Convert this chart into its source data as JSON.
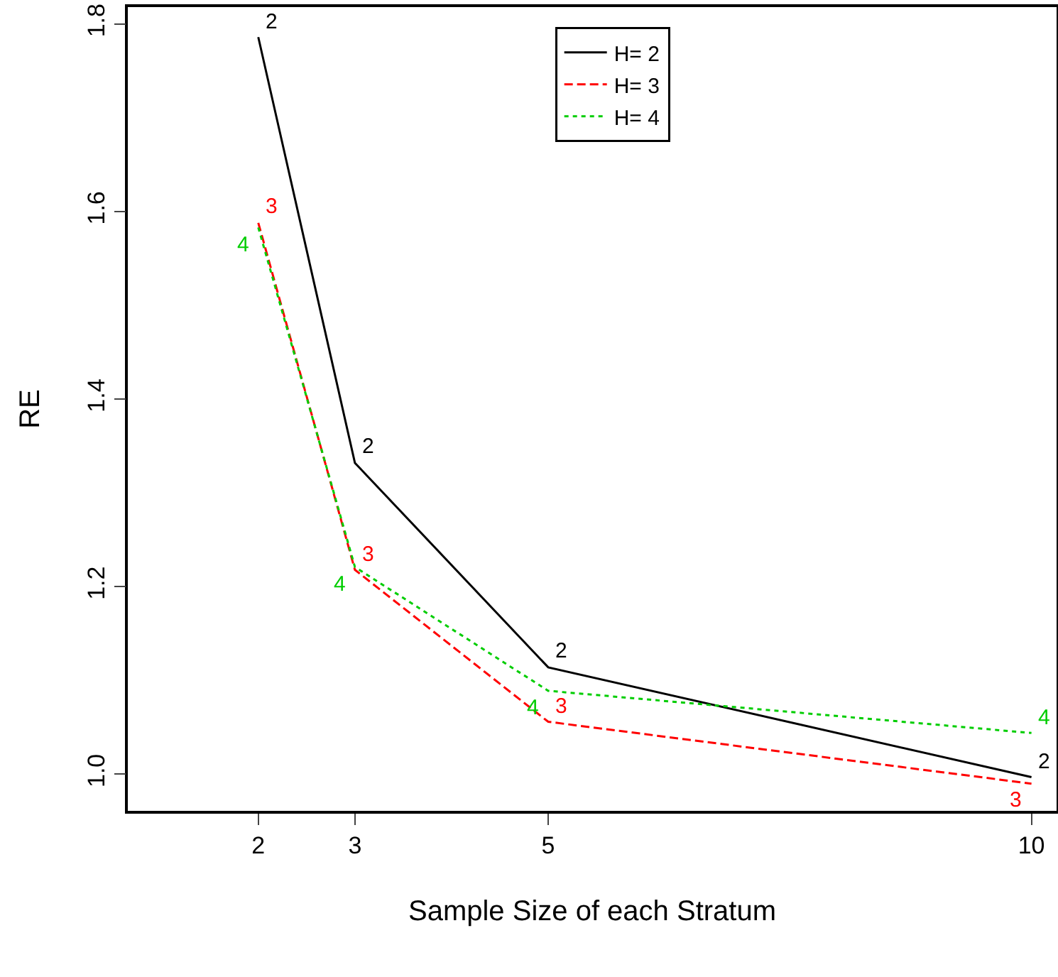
{
  "chart_data": {
    "type": "line",
    "xlabel": "Sample Size of each Stratum",
    "ylabel": "RE",
    "xlim": [
      0.65,
      10.26
    ],
    "xticks": [
      2,
      3,
      5,
      10
    ],
    "ylim": [
      0.961,
      1.818
    ],
    "yticks": [
      {
        "value": 1.0,
        "label": "1.0"
      },
      {
        "value": 1.2,
        "label": "1.2"
      },
      {
        "value": 1.4,
        "label": "1.4"
      },
      {
        "value": 1.6,
        "label": "1.6"
      },
      {
        "value": 1.8,
        "label": "1.8"
      }
    ],
    "x": [
      2,
      3,
      5,
      10
    ],
    "grid": false,
    "legend": "top right",
    "marker": "none",
    "series": [
      {
        "name": "H= 2",
        "color": "#000000",
        "line_style": "solid",
        "values": [
          1.786,
          1.332,
          1.114,
          0.997
        ]
      },
      {
        "name": "H= 3",
        "color": "#ff0000",
        "line_style": "dashed",
        "values": [
          1.588,
          1.218,
          1.056,
          0.99
        ]
      },
      {
        "name": "H= 4",
        "color": "#00cd00",
        "line_style": "dotted",
        "values": [
          1.583,
          1.221,
          1.089,
          1.044
        ]
      }
    ],
    "annotations": [
      {
        "text": "2",
        "x": 2,
        "y": 1.786
      },
      {
        "text": "2",
        "x": 3,
        "y": 1.332
      },
      {
        "text": "2",
        "x": 5,
        "y": 1.114
      },
      {
        "text": "2",
        "x": 10,
        "y": 0.997
      },
      {
        "text": "3",
        "x": 2,
        "y": 1.588
      },
      {
        "text": "3",
        "x": 3,
        "y": 1.218
      },
      {
        "text": "3",
        "x": 5,
        "y": 1.056
      },
      {
        "text": "3",
        "x": 10,
        "y": 0.99
      },
      {
        "text": "4",
        "x": 2,
        "y": 1.583
      },
      {
        "text": "4",
        "x": 3,
        "y": 1.221
      },
      {
        "text": "4",
        "x": 5,
        "y": 1.089
      },
      {
        "text": "4",
        "x": 10,
        "y": 1.044
      }
    ]
  }
}
